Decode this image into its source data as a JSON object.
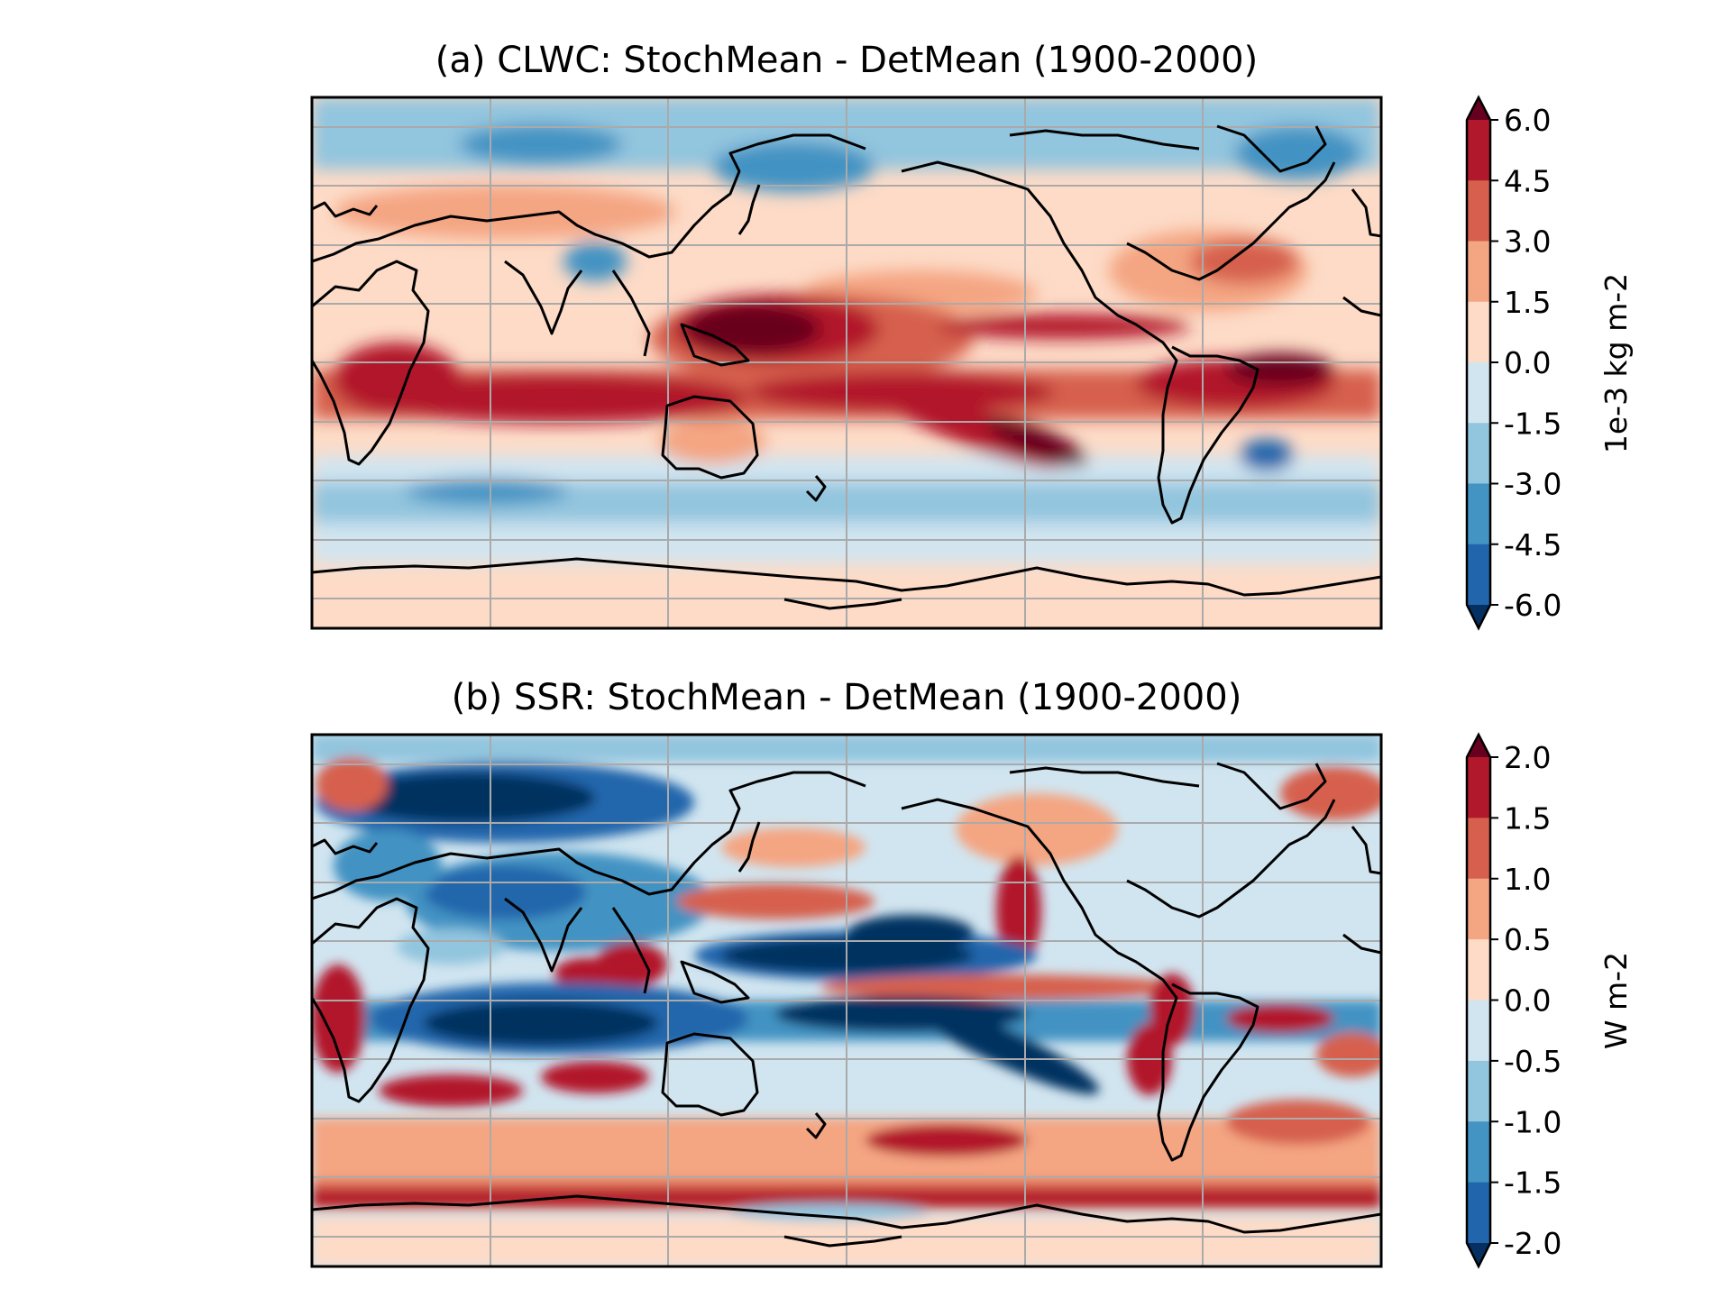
{
  "figure": {
    "panels": [
      {
        "id": "a",
        "title": "(a) CLWC: StochMean - DetMean (1900-2000)",
        "colorbar": {
          "label": "1e-3 kg m-2",
          "ticks": [
            "6.0",
            "4.5",
            "3.0",
            "1.5",
            "0.0",
            "-1.5",
            "-3.0",
            "-4.5",
            "-6.0"
          ],
          "extend": "both"
        }
      },
      {
        "id": "b",
        "title": "(b) SSR: StochMean - DetMean (1900-2000)",
        "colorbar": {
          "label": "W m-2",
          "ticks": [
            "2.0",
            "1.5",
            "1.0",
            "0.5",
            "0.0",
            "-0.5",
            "-1.0",
            "-1.5",
            "-2.0"
          ],
          "extend": "both"
        }
      }
    ],
    "colormap": {
      "name": "RdBu_r",
      "bins_high_to_low": [
        "#b2182b",
        "#d6604d",
        "#f4a582",
        "#fddbc7",
        "#d1e5f0",
        "#92c5de",
        "#4393c3",
        "#2166ac"
      ],
      "over": "#67001f",
      "under": "#053061"
    }
  },
  "chart_data": [
    {
      "type": "heatmap",
      "title": "(a) CLWC: StochMean - DetMean (1900-2000)",
      "variable": "CLWC",
      "units": "1e-3 kg m-2",
      "levels": [
        -6.0,
        -4.5,
        -3.0,
        -1.5,
        0.0,
        1.5,
        3.0,
        4.5,
        6.0
      ],
      "extend": "both",
      "projection": "PlateCarree, centred on the Pacific",
      "gridlines": true
    },
    {
      "type": "heatmap",
      "title": "(b) SSR: StochMean - DetMean (1900-2000)",
      "variable": "SSR",
      "units": "W m-2",
      "levels": [
        -2.0,
        -1.5,
        -1.0,
        -0.5,
        0.0,
        0.5,
        1.0,
        1.5,
        2.0
      ],
      "extend": "both",
      "projection": "PlateCarree, centred on the Pacific",
      "gridlines": true
    }
  ]
}
